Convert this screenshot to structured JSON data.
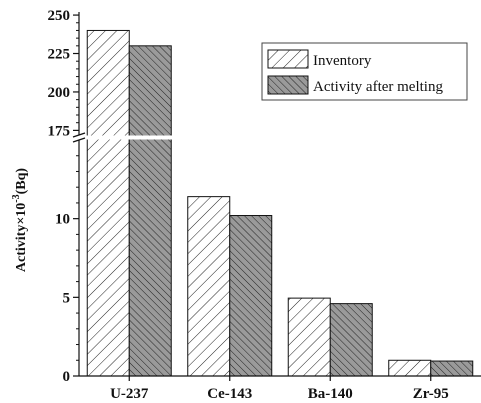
{
  "chart_data": {
    "type": "bar",
    "categories": [
      "U-237",
      "Ce-143",
      "Ba-140",
      "Zr-95"
    ],
    "series": [
      {
        "name": "Inventory",
        "values": [
          240,
          11.4,
          4.95,
          1.0
        ],
        "pattern": "hatch-light",
        "fill": "#ffffff"
      },
      {
        "name": "Activity after melting",
        "values": [
          230,
          10.2,
          4.6,
          0.95
        ],
        "pattern": "hatch-dark",
        "fill": "#9a9a9a"
      }
    ],
    "ylabel_main": "Activity×10",
    "ylabel_sup": "-3",
    "ylabel_tail": "(Bq)",
    "y_break": true,
    "y_segments": [
      {
        "range": [
          0,
          15
        ],
        "ticks": [
          0,
          5,
          10
        ],
        "tick_labels": [
          "0",
          "5",
          "10"
        ]
      },
      {
        "range": [
          172,
          252
        ],
        "ticks": [
          175,
          200,
          225,
          250
        ],
        "tick_labels": [
          "175",
          "200",
          "225",
          "250"
        ]
      }
    ],
    "legend_position": "top-right",
    "grid": false
  }
}
